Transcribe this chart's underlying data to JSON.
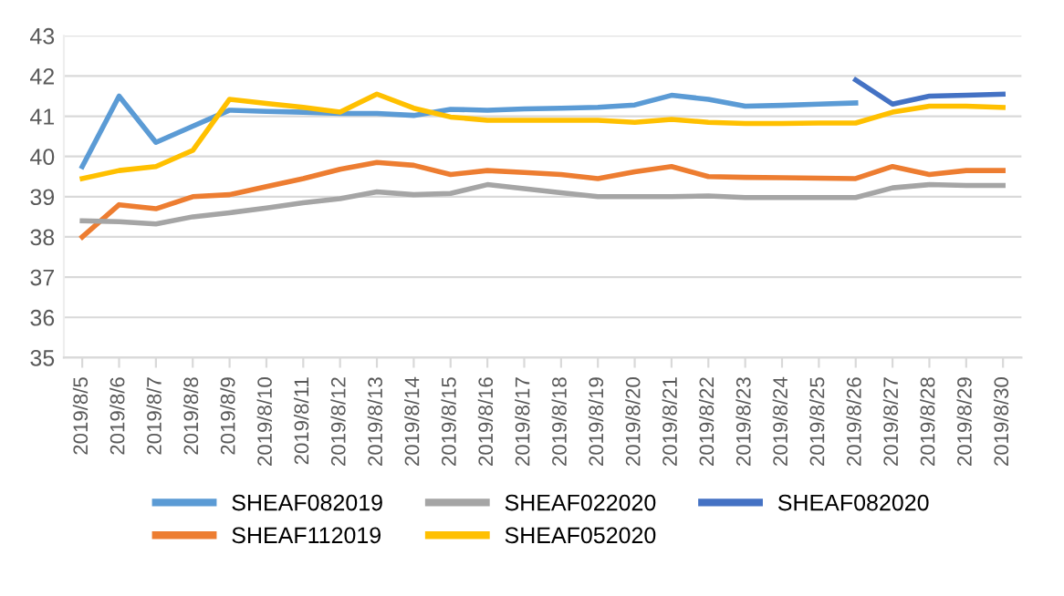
{
  "chart_data": {
    "type": "line",
    "categories": [
      "2019/8/5",
      "2019/8/6",
      "2019/8/7",
      "2019/8/8",
      "2019/8/9",
      "2019/8/10",
      "2019/8/11",
      "2019/8/12",
      "2019/8/13",
      "2019/8/14",
      "2019/8/15",
      "2019/8/16",
      "2019/8/17",
      "2019/8/18",
      "2019/8/19",
      "2019/8/20",
      "2019/8/21",
      "2019/8/22",
      "2019/8/23",
      "2019/8/24",
      "2019/8/25",
      "2019/8/26",
      "2019/8/27",
      "2019/8/28",
      "2019/8/29",
      "2019/8/30"
    ],
    "series": [
      {
        "name": "SHEAF082019",
        "color": "#5b9bd5",
        "values": [
          39.75,
          41.5,
          40.35,
          40.75,
          41.15,
          41.12,
          41.1,
          41.07,
          41.07,
          41.02,
          41.17,
          41.15,
          41.18,
          41.2,
          41.22,
          41.28,
          41.52,
          41.42,
          41.25,
          41.27,
          41.3,
          41.33,
          null,
          null,
          null,
          null
        ]
      },
      {
        "name": "SHEAF112019",
        "color": "#ed7d31",
        "values": [
          38.0,
          38.8,
          38.7,
          39.0,
          39.05,
          39.25,
          39.45,
          39.68,
          39.85,
          39.78,
          39.55,
          39.65,
          39.6,
          39.55,
          39.45,
          39.62,
          39.75,
          39.5,
          39.48,
          39.47,
          39.46,
          39.45,
          39.75,
          39.55,
          39.65,
          39.65
        ]
      },
      {
        "name": "SHEAF022020",
        "color": "#a5a5a5",
        "values": [
          38.4,
          38.38,
          38.32,
          38.5,
          38.6,
          38.72,
          38.85,
          38.95,
          39.12,
          39.05,
          39.08,
          39.3,
          39.2,
          39.1,
          39.0,
          39.0,
          39.0,
          39.02,
          38.98,
          38.98,
          38.98,
          38.98,
          39.22,
          39.3,
          39.28,
          39.28
        ]
      },
      {
        "name": "SHEAF052020",
        "color": "#ffc000",
        "values": [
          39.45,
          39.65,
          39.75,
          40.15,
          41.42,
          41.32,
          41.22,
          41.1,
          41.55,
          41.2,
          40.98,
          40.9,
          40.9,
          40.9,
          40.9,
          40.85,
          40.92,
          40.85,
          40.82,
          40.82,
          40.83,
          40.83,
          41.1,
          41.25,
          41.25,
          41.22
        ]
      },
      {
        "name": "SHEAF082020",
        "color": "#4472c4",
        "values": [
          null,
          null,
          null,
          null,
          null,
          null,
          null,
          null,
          null,
          null,
          null,
          null,
          null,
          null,
          null,
          null,
          null,
          null,
          null,
          null,
          null,
          41.9,
          41.3,
          41.5,
          41.52,
          41.55
        ]
      }
    ],
    "ylim": [
      35,
      43
    ],
    "yticks": [
      35,
      36,
      37,
      38,
      39,
      40,
      41,
      42,
      43
    ],
    "grid": "y",
    "legend": "bottom",
    "marker": "none",
    "line_style": "solid"
  }
}
